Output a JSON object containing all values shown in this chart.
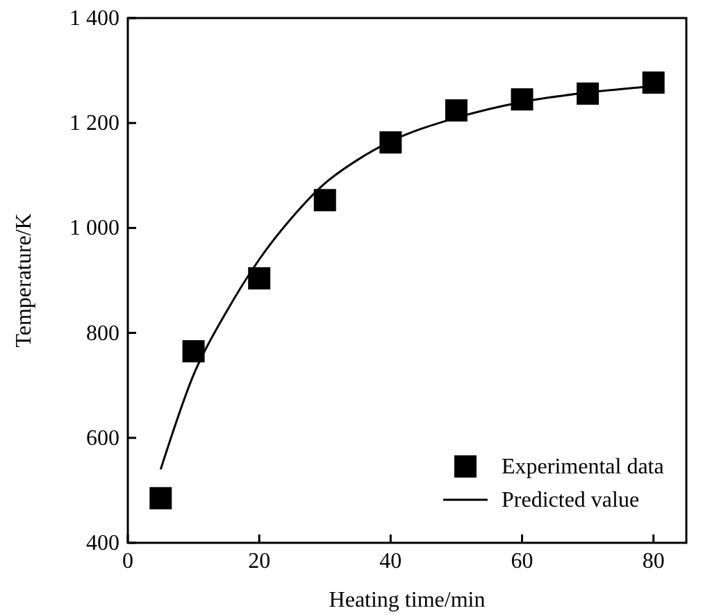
{
  "chart_data": {
    "type": "scatter",
    "xlabel": "Heating time/min",
    "ylabel": "Temperature/K",
    "xlim": [
      0,
      85
    ],
    "ylim": [
      400,
      1400
    ],
    "xticks": [
      0,
      20,
      40,
      60,
      80
    ],
    "yticks": [
      400,
      600,
      800,
      {
        "value": 1000,
        "label": "1 000"
      },
      {
        "value": 1200,
        "label": "1 200"
      },
      {
        "value": 1400,
        "label": "1 400"
      }
    ],
    "legend": "bottom right",
    "grid": false,
    "series": [
      {
        "name": "Experimental data",
        "marker": "square",
        "color": "#000000",
        "x": [
          5,
          10,
          20,
          30,
          40,
          50,
          60,
          70,
          80
        ],
        "values": [
          485,
          765,
          904,
          1053,
          1163,
          1224,
          1245,
          1256,
          1277
        ]
      },
      {
        "name": "Predicted value",
        "type": "line",
        "marker": "none",
        "line_style": "solid",
        "color": "#000000",
        "x": [
          5,
          10,
          15,
          20,
          25,
          30,
          35,
          40,
          50,
          60,
          70,
          80
        ],
        "values": [
          540,
          720,
          840,
          940,
          1020,
          1085,
          1130,
          1165,
          1210,
          1240,
          1258,
          1270
        ]
      }
    ]
  }
}
